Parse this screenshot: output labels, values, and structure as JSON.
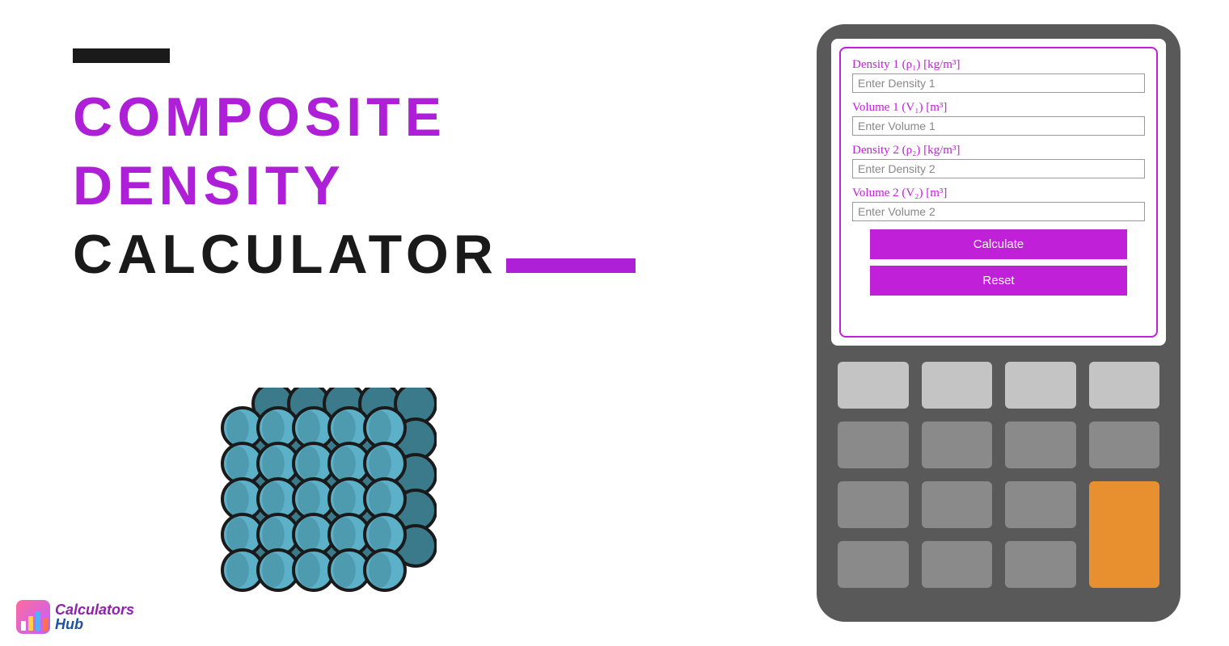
{
  "title": {
    "line1": "COMPOSITE",
    "line2": "DENSITY",
    "line3": "CALCULATOR",
    "purple_color": "#ae20d8",
    "black_color": "#1a1a1a",
    "bar_color": "#1a1a1a",
    "underline_color": "#ae20d8"
  },
  "form": {
    "fields": [
      {
        "label": "Density 1 (ρ₁) [kg/m³]",
        "placeholder": "Enter Density 1"
      },
      {
        "label": "Volume 1 (V₁) [m³]",
        "placeholder": "Enter Volume 1"
      },
      {
        "label": "Density 2 (ρ₂) [kg/m³]",
        "placeholder": "Enter Density 2"
      },
      {
        "label": "Volume 2 (V₂) [m³]",
        "placeholder": "Enter Volume 2"
      }
    ],
    "calculate_label": "Calculate",
    "reset_label": "Reset",
    "border_color": "#c020d8",
    "button_color": "#c020d8",
    "label_color": "#c020d8"
  },
  "calculator": {
    "body_color": "#595959",
    "key_rows": [
      [
        "light",
        "light",
        "light",
        "light"
      ],
      [
        "normal",
        "normal",
        "normal",
        "normal"
      ],
      [
        "normal",
        "normal",
        "normal",
        "orange"
      ],
      [
        "normal",
        "normal",
        "normal",
        ""
      ]
    ],
    "key_light_color": "#c4c4c4",
    "key_normal_color": "#8a8a8a",
    "key_orange_color": "#e89030"
  },
  "sphere_graphic": {
    "dark_color": "#3a7a8a",
    "light_color": "#5cb0c8",
    "stroke_color": "#1a1a1a",
    "rows": 5,
    "cols": 5
  },
  "logo": {
    "word1": "Calculators",
    "word2": "Hub"
  }
}
